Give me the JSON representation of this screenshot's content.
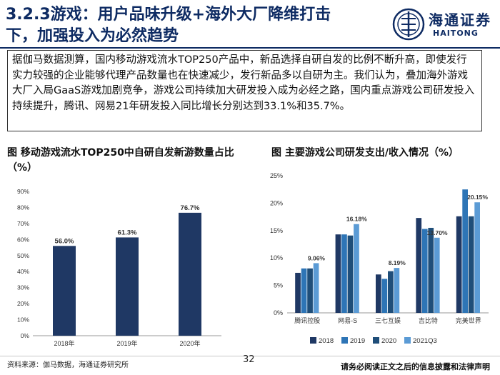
{
  "header": {
    "title_line1": "3.2.3游戏：用户品味升级+海外大厂降维打击",
    "title_line2": "下，加强投入为必然趋势",
    "logo_cn": "海通证券",
    "logo_en": "HAITONG"
  },
  "summary": "据伽马数据测算，国内移动游戏流水TOP250产品中，新品选择自研自发的比例不断升高，即使发行实力较强的企业能够代理产品数量也在快速减少，发行新品多以自研为主。我们认为，叠加海外游戏大厂入局GaaS游戏加剧竞争，游戏公司持续加大研发投入成为必经之路，国内重点游戏公司研发投入持续提升，腾讯、网易21年研发投入同比增长分别达到33.1%和35.7%。",
  "chart1_title": "图 移动游戏流水TOP250中自研自发新游数量占比（%）",
  "chart2_title": "图 主要游戏公司研发支出/收入情况（%）",
  "footer": {
    "source": "资料来源：伽马数据，海通证券研究所",
    "page_number": "32",
    "disclaimer": "请务必阅读正文之后的信息披露和法律声明"
  },
  "colors": {
    "navy": "#0e2b63",
    "bar1": "#1f3864",
    "s2018": "#1f3864",
    "s2019": "#2e75b6",
    "s2020": "#1f4e79",
    "s2021": "#5b9bd5"
  },
  "chart_data": [
    {
      "type": "bar",
      "categories": [
        "2018年",
        "2019年",
        "2020年"
      ],
      "values": [
        56.0,
        61.3,
        76.7
      ],
      "value_labels": [
        "56.0%",
        "61.3%",
        "76.7%"
      ],
      "y_ticks": [
        "0%",
        "10%",
        "20%",
        "30%",
        "40%",
        "50%",
        "60%",
        "70%",
        "80%",
        "90%"
      ],
      "ylim": [
        0,
        90
      ]
    },
    {
      "type": "bar",
      "categories": [
        "腾讯控股",
        "网易-S",
        "三七互娱",
        "吉比特",
        "完美世界"
      ],
      "series": [
        {
          "name": "2018",
          "values": [
            7.3,
            14.3,
            7.0,
            17.3,
            17.6
          ]
        },
        {
          "name": "2019",
          "values": [
            8.1,
            14.3,
            6.2,
            15.3,
            22.5
          ]
        },
        {
          "name": "2020",
          "values": [
            8.1,
            14.1,
            7.6,
            15.5,
            17.6
          ]
        },
        {
          "name": "2021Q3",
          "values": [
            9.06,
            16.18,
            8.19,
            13.7,
            20.15
          ]
        }
      ],
      "annotations": [
        {
          "category": "腾讯控股",
          "text": "9.06%"
        },
        {
          "category": "网易-S",
          "text": "16.18%"
        },
        {
          "category": "三七互娱",
          "text": "8.19%"
        },
        {
          "category": "吉比特",
          "text": "13.70%"
        },
        {
          "category": "完美世界",
          "text": "20.15%"
        }
      ],
      "y_ticks": [
        "0%",
        "5%",
        "10%",
        "15%",
        "20%",
        "25%"
      ],
      "ylim": [
        0,
        25
      ],
      "legend_position": "bottom"
    }
  ]
}
